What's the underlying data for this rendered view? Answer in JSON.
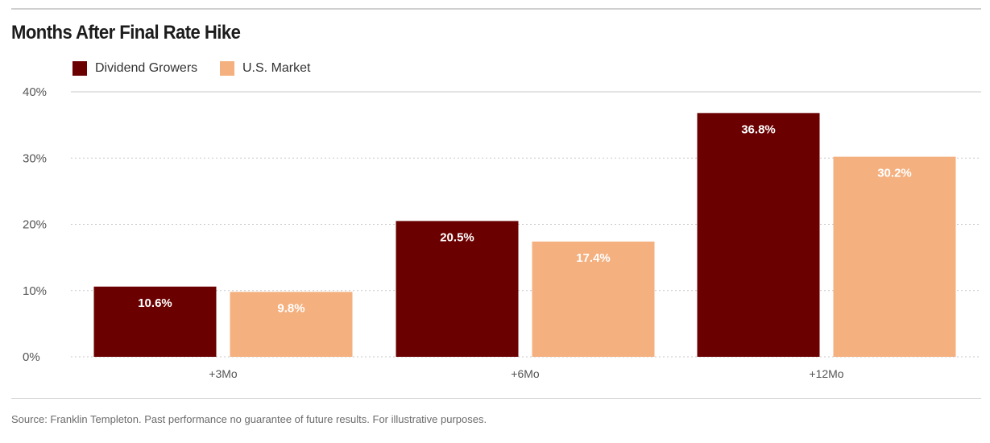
{
  "title": "Months After Final Rate Hike",
  "source": "Source: Franklin Templeton. Past performance no guarantee of future results. For illustrative purposes.",
  "colors": {
    "dividend_growers": "#6b0000",
    "us_market": "#f4b07f",
    "grid": "#c8c8c8",
    "axis_text": "#555555"
  },
  "chart_data": {
    "type": "bar",
    "title": "Months After Final Rate Hike",
    "categories": [
      "+3Mo",
      "+6Mo",
      "+12Mo"
    ],
    "series": [
      {
        "name": "Dividend Growers",
        "values": [
          10.6,
          20.5,
          36.8
        ],
        "labels": [
          "10.6%",
          "20.5%",
          "36.8%"
        ],
        "color": "#6b0000"
      },
      {
        "name": "U.S. Market",
        "values": [
          9.8,
          17.4,
          30.2
        ],
        "labels": [
          "9.8%",
          "17.4%",
          "30.2%"
        ],
        "color": "#f4b07f"
      }
    ],
    "ylim": [
      0,
      40
    ],
    "yticks": [
      0,
      10,
      20,
      30,
      40
    ],
    "ytick_labels": [
      "0%",
      "10%",
      "20%",
      "30%",
      "40%"
    ],
    "xlabel": "",
    "ylabel": "",
    "grid": true,
    "legend": "top-left"
  }
}
